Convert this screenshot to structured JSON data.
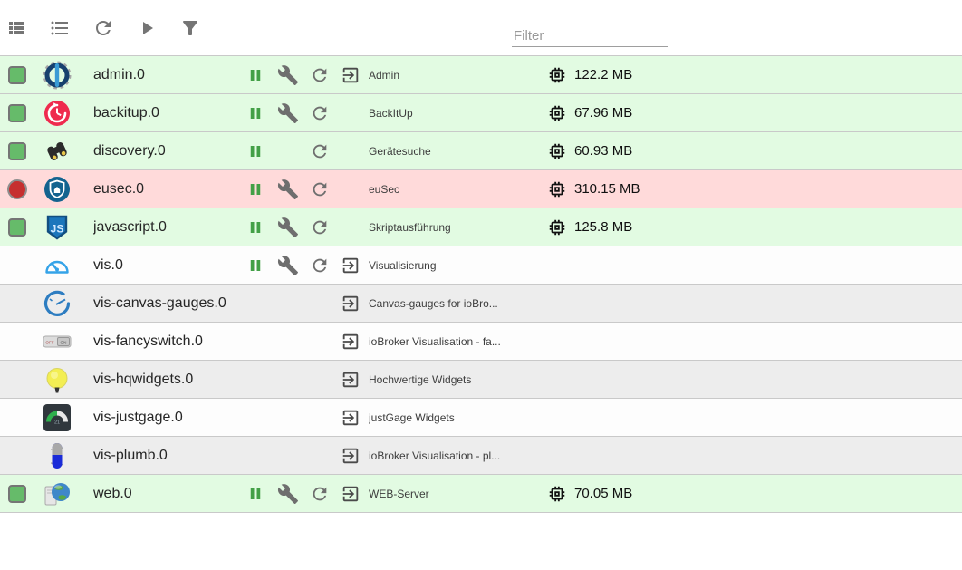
{
  "colors": {
    "row-green": "#e2fbe2",
    "row-red": "#ffdada",
    "row-white": "#fdfdfd",
    "row-gray": "#ededed",
    "status-green": "#66bb6a",
    "status-red": "#c62f2f",
    "accent-pause": "#43a047",
    "icon-gray": "#757575",
    "ctl-gray": "#6e6e6e",
    "ctl-dark": "#4a4a4a",
    "sep": "#c9c9c9"
  },
  "toolbar": {
    "icons": [
      "view-list-icon",
      "bulleted-list-icon",
      "reload-icon",
      "play-icon",
      "filter-funnel-icon"
    ],
    "filter": {
      "placeholder": "Filter",
      "value": ""
    }
  },
  "instances": [
    {
      "id": "admin.0",
      "title": "Admin",
      "icon": "admin-gear-icon",
      "status": "running",
      "row_bg": "green",
      "controls": {
        "pause": true,
        "settings": true,
        "restart": true,
        "open": true
      },
      "ram": "122.2 MB"
    },
    {
      "id": "backitup.0",
      "title": "BackItUp",
      "icon": "backitup-clock-icon",
      "status": "running",
      "row_bg": "green",
      "controls": {
        "pause": true,
        "settings": true,
        "restart": true,
        "open": false
      },
      "ram": "67.96 MB"
    },
    {
      "id": "discovery.0",
      "title": "Gerätesuche",
      "icon": "discovery-binoculars-icon",
      "status": "running",
      "row_bg": "green",
      "controls": {
        "pause": true,
        "settings": false,
        "restart": true,
        "open": false
      },
      "ram": "60.93 MB"
    },
    {
      "id": "eusec.0",
      "title": "euSec",
      "icon": "eusec-shield-icon",
      "status": "error",
      "row_bg": "red",
      "controls": {
        "pause": true,
        "settings": true,
        "restart": true,
        "open": false
      },
      "ram": "310.15 MB"
    },
    {
      "id": "javascript.0",
      "title": "Skriptausführung",
      "icon": "javascript-logo-icon",
      "status": "running",
      "row_bg": "green",
      "controls": {
        "pause": true,
        "settings": true,
        "restart": true,
        "open": false
      },
      "ram": "125.8 MB"
    },
    {
      "id": "vis.0",
      "title": "Visualisierung",
      "icon": "vis-gauge-icon",
      "status": "stopped",
      "row_bg": "white",
      "controls": {
        "pause": true,
        "settings": true,
        "restart": true,
        "open": true
      },
      "ram": null
    },
    {
      "id": "vis-canvas-gauges.0",
      "title": "Canvas-gauges for ioBro...",
      "icon": "canvas-gauges-icon",
      "status": "stopped",
      "row_bg": "gray",
      "controls": {
        "pause": false,
        "settings": false,
        "restart": false,
        "open": true
      },
      "ram": null
    },
    {
      "id": "vis-fancyswitch.0",
      "title": "ioBroker Visualisation - fa...",
      "icon": "fancyswitch-icon",
      "status": "stopped",
      "row_bg": "white",
      "controls": {
        "pause": false,
        "settings": false,
        "restart": false,
        "open": true
      },
      "ram": null
    },
    {
      "id": "vis-hqwidgets.0",
      "title": "Hochwertige Widgets",
      "icon": "hqwidgets-bulb-icon",
      "status": "stopped",
      "row_bg": "gray",
      "controls": {
        "pause": false,
        "settings": false,
        "restart": false,
        "open": true
      },
      "ram": null
    },
    {
      "id": "vis-justgage.0",
      "title": "justGage Widgets",
      "icon": "justgage-icon",
      "status": "stopped",
      "row_bg": "white",
      "controls": {
        "pause": false,
        "settings": false,
        "restart": false,
        "open": true
      },
      "ram": null
    },
    {
      "id": "vis-plumb.0",
      "title": "ioBroker Visualisation - pl...",
      "icon": "plumb-capsule-icon",
      "status": "stopped",
      "row_bg": "gray",
      "controls": {
        "pause": false,
        "settings": false,
        "restart": false,
        "open": true
      },
      "ram": null
    },
    {
      "id": "web.0",
      "title": "WEB-Server",
      "icon": "web-globe-icon",
      "status": "running",
      "row_bg": "green",
      "controls": {
        "pause": true,
        "settings": true,
        "restart": true,
        "open": true
      },
      "ram": "70.05 MB"
    }
  ]
}
